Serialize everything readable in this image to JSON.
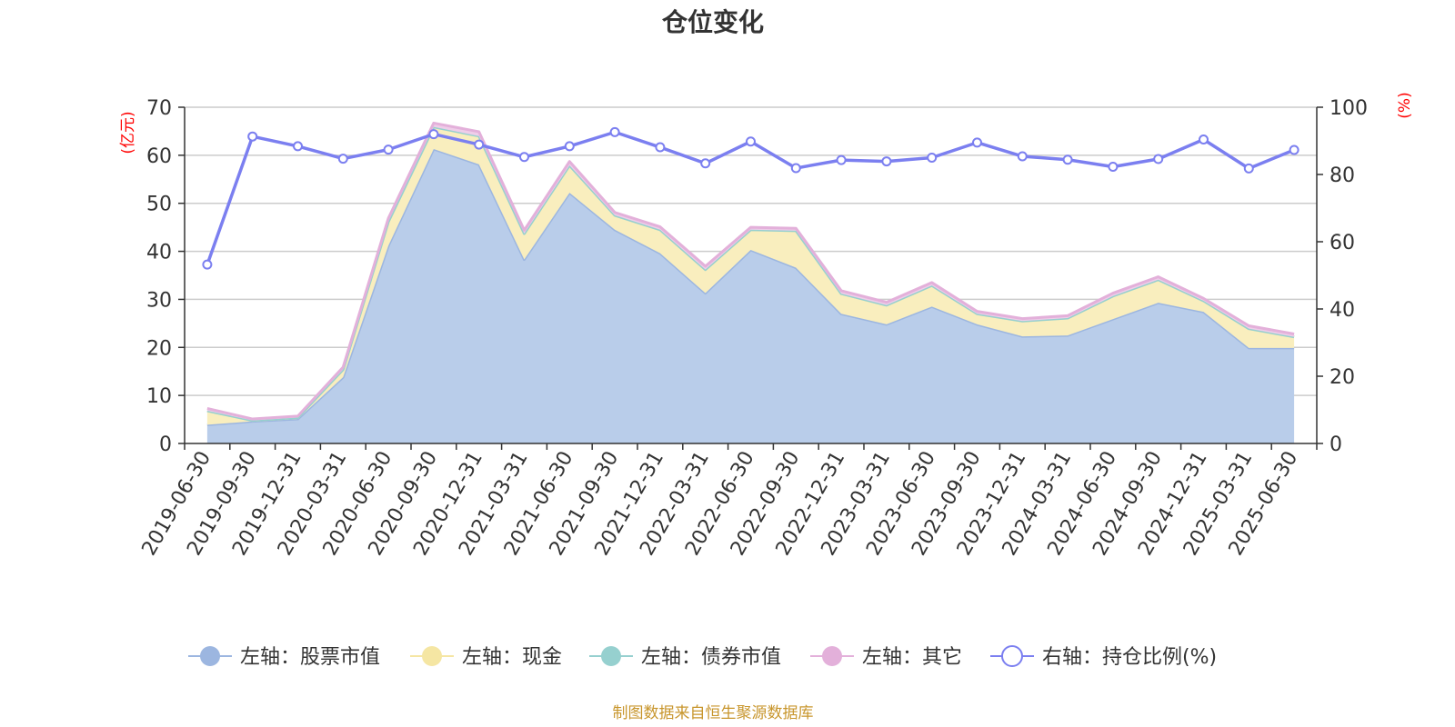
{
  "chart_data": {
    "type": "area",
    "title": "仓位变化",
    "left_axis_unit": "(亿元)",
    "right_axis_unit": "(%)",
    "ylim_left": [
      0,
      70
    ],
    "yticks_left": [
      0,
      10,
      20,
      30,
      40,
      50,
      60,
      70
    ],
    "ylim_right": [
      0,
      100
    ],
    "yticks_right": [
      0,
      20,
      40,
      60,
      80,
      100
    ],
    "grid": true,
    "stacked": true,
    "categories": [
      "2019-06-30",
      "2019-09-30",
      "2019-12-31",
      "2020-03-31",
      "2020-06-30",
      "2020-09-30",
      "2020-12-31",
      "2021-03-31",
      "2021-06-30",
      "2021-09-30",
      "2021-12-31",
      "2022-03-31",
      "2022-06-30",
      "2022-09-30",
      "2022-12-31",
      "2023-03-31",
      "2023-06-30",
      "2023-09-30",
      "2023-12-31",
      "2024-03-31",
      "2024-06-30",
      "2024-09-30",
      "2024-12-31",
      "2025-03-31",
      "2025-06-30"
    ],
    "series": [
      {
        "name": "左轴：股票市值",
        "axis": "left",
        "color": "#9cb6e0",
        "fill": "#b9cdea",
        "values": [
          3.9,
          4.6,
          5.1,
          13.8,
          41.2,
          61.3,
          58.1,
          38.3,
          52.2,
          44.5,
          39.6,
          31.3,
          40.3,
          36.6,
          27.0,
          24.8,
          28.5,
          24.8,
          22.3,
          22.5,
          25.9,
          29.3,
          27.4,
          19.9,
          19.9
        ]
      },
      {
        "name": "左轴：现金",
        "axis": "left",
        "color": "#f5e6a3",
        "fill": "#f9eebe",
        "values": [
          2.9,
          0.2,
          0.3,
          1.6,
          5.0,
          4.6,
          5.9,
          5.4,
          5.7,
          3.0,
          4.9,
          4.9,
          4.2,
          7.7,
          4.2,
          4.0,
          4.4,
          2.2,
          3.2,
          3.6,
          4.8,
          4.8,
          2.3,
          4.0,
          2.3
        ]
      },
      {
        "name": "左轴：债券市值",
        "axis": "left",
        "color": "#96d0cf",
        "fill": "#b9e2e1",
        "values": [
          0,
          0,
          0,
          0,
          0,
          0,
          0,
          0,
          0,
          0,
          0,
          0,
          0,
          0,
          0,
          0,
          0,
          0,
          0,
          0,
          0,
          0,
          0,
          0,
          0
        ]
      },
      {
        "name": "左轴：其它",
        "axis": "left",
        "color": "#e3b0da",
        "fill": "#efcde9",
        "values": [
          0.5,
          0.3,
          0.3,
          0.5,
          0.7,
          0.8,
          0.9,
          0.7,
          0.8,
          0.6,
          0.6,
          0.7,
          0.5,
          0.5,
          0.6,
          0.6,
          0.6,
          0.5,
          0.5,
          0.5,
          0.6,
          0.6,
          0.5,
          0.6,
          0.6
        ]
      },
      {
        "name": "右轴：持仓比例(%)",
        "axis": "right",
        "color": "#7b7ff0",
        "fill": "none",
        "values": [
          53.2,
          91.3,
          88.4,
          84.7,
          87.4,
          92.0,
          88.9,
          85.2,
          88.4,
          92.6,
          88.1,
          83.3,
          89.8,
          81.9,
          84.3,
          83.9,
          85.0,
          89.5,
          85.4,
          84.4,
          82.3,
          84.6,
          90.4,
          81.8,
          87.3
        ]
      }
    ],
    "legend_position": "bottom",
    "source_text": "制图数据来自恒生聚源数据库"
  }
}
